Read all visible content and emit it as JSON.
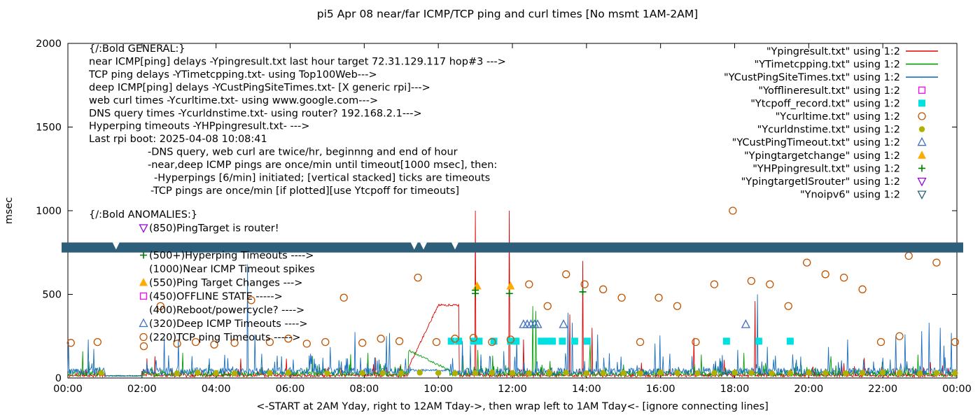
{
  "title": "pi5 Apr 08  near/far ICMP/TCP ping and curl times [No msmt 1AM-2AM]",
  "ylabel": "msec",
  "xlabel": "<-START at 2AM Yday, right to 12AM Tday->, then wrap left to 1AM Tday<- [ignore connecting lines]",
  "axes": {
    "y_ticks": [
      0,
      500,
      1000,
      1500,
      2000
    ],
    "x_ticks": [
      "00:00",
      "02:00",
      "04:00",
      "06:00",
      "08:00",
      "10:00",
      "12:00",
      "14:00",
      "16:00",
      "18:00",
      "20:00",
      "22:00",
      "00:00"
    ],
    "x_range_hours": [
      0,
      24
    ],
    "y_range": [
      0,
      2000
    ],
    "grid": false
  },
  "legend": {
    "position": "top-right-inside",
    "items": [
      {
        "label": "\"Ypingresult.txt\" using 1:2",
        "marker": "line",
        "color": "#dd0000"
      },
      {
        "label": "\"YTimetcpping.txt\" using 1:2",
        "marker": "line",
        "color": "#009e00"
      },
      {
        "label": "\"YCustPingSiteTimes.txt\" using 1:2",
        "marker": "line",
        "color": "#1b6fc0"
      },
      {
        "label": "\"Yofflineresult.txt\" using 1:2",
        "marker": "square-open",
        "color": "#ff00ff"
      },
      {
        "label": "\"Ytcpoff_record.txt\" using 1:2",
        "marker": "square-filled",
        "color": "#00e0e0"
      },
      {
        "label": "\"Ycurltime.txt\" using 1:2",
        "marker": "circle-open",
        "color": "#c25400"
      },
      {
        "label": "\"Ycurldnstime.txt\" using 1:2",
        "marker": "circle-filled",
        "color": "#b0b000"
      },
      {
        "label": "\"YCustPingTimeout.txt\" using 1:2",
        "marker": "triangle-open",
        "color": "#3f6fc4"
      },
      {
        "label": "\"Ypingtargetchange\" using 1:2",
        "marker": "triangle-filled",
        "color": "#ffaa00"
      },
      {
        "label": "\"YHPpingresult.txt\" using 1:2",
        "marker": "plus",
        "color": "#007a00"
      },
      {
        "label": "\"YpingtargetISrouter\" using 1:2",
        "marker": "nabla-open",
        "color": "#9400d3"
      },
      {
        "label": "\"Ynoipv6\" using 1:2",
        "marker": "nabla-open",
        "color": "#2e5f7a"
      }
    ]
  },
  "general_text": {
    "lines": [
      {
        "text": "{/:Bold GENERAL:}",
        "indent": 0
      },
      {
        "text": "near ICMP[ping] delays -Ypingresult.txt last hour target 72.31.129.117 hop#3 --->",
        "indent": 0
      },
      {
        "text": "TCP ping delays -YTimetcpping.txt- using Top100Web--->",
        "indent": 0
      },
      {
        "text": "deep ICMP[ping] delays -YCustPingSiteTimes.txt- [X generic rpi]--->",
        "indent": 0
      },
      {
        "text": "web curl times -Ycurltime.txt- using www.google.com--->",
        "indent": 0
      },
      {
        "text": "DNS query times -Ycurldnstime.txt- using router? 192.168.2.1--->",
        "indent": 0
      },
      {
        "text": "Hyperping timeouts -YHPpingresult.txt- --->",
        "indent": 0
      },
      {
        "text": "Last rpi boot: 2025-04-08 10:08:41",
        "indent": 0
      },
      {
        "text": "-DNS query, web curl are twice/hr, beginnng and end of hour",
        "indent": 84
      },
      {
        "text": "-near,deep ICMP pings are once/min until timeout[1000 msec], then:",
        "indent": 84
      },
      {
        "text": "-Hyperpings [6/min] initiated; [vertical stacked] ticks are timeouts",
        "indent": 93
      },
      {
        "text": "-TCP pings are once/min [if plotted][use Ytcpoff for timeouts]",
        "indent": 88
      }
    ]
  },
  "anomalies": {
    "header": "{/:Bold ANOMALIES:}",
    "items": [
      {
        "marker": "nabla-open",
        "color": "#9400d3",
        "text": "(850)PingTarget is router!",
        "gap_before": 0
      },
      {
        "marker": "plus",
        "color": "#007a00",
        "text": "(500+)Hyperping Timeouts ---->",
        "gap_before": 1
      },
      {
        "marker": "",
        "color": "",
        "text": "(1000)Near ICMP Timeout spikes",
        "gap_before": 0
      },
      {
        "marker": "triangle-filled",
        "color": "#ffaa00",
        "text": "(550)Ping Target Changes --->",
        "gap_before": 0
      },
      {
        "marker": "square-open",
        "color": "#ff00ff",
        "text": "(450)OFFLINE STATE ----->",
        "gap_before": 0
      },
      {
        "marker": "",
        "color": "",
        "text": "(400)Reboot/powercycle? ---->",
        "gap_before": 0
      },
      {
        "marker": "triangle-open",
        "color": "#3f6fc4",
        "text": "(320)Deep ICMP Timeouts ---->",
        "gap_before": 0
      },
      {
        "marker": "circle-open",
        "color": "#c25400",
        "text": "(220)TCP ping Timeouts ----->",
        "gap_before": 0
      }
    ]
  },
  "chart_data": {
    "type": "line",
    "x_unit": "hours_0_to_24",
    "y_unit": "msec",
    "xlim": [
      0,
      24
    ],
    "ylim": [
      0,
      2000
    ],
    "no_measurement_window_hours": [
      1,
      2
    ],
    "series": [
      {
        "name": "Ypingresult.txt",
        "type": "noise-line",
        "color": "#dd0000",
        "base": 18,
        "amp": 45,
        "seed": 11,
        "segments": [
          {
            "x0": 9.2,
            "y0": 60,
            "x1": 10.0,
            "y1": 430
          },
          {
            "x0": 10.0,
            "y0": 430,
            "x1": 10.55,
            "y1": 430
          }
        ],
        "spikes": [
          [
            11.0,
            1000
          ],
          [
            11.92,
            1000
          ],
          [
            13.9,
            700
          ],
          [
            13.55,
            380
          ],
          [
            14.15,
            300
          ],
          [
            12.3,
            230
          ],
          [
            16.9,
            240
          ],
          [
            18.55,
            460
          ],
          [
            2.35,
            130
          ],
          [
            5.9,
            115
          ],
          [
            21.5,
            120
          ]
        ]
      },
      {
        "name": "YTimetcpping.txt",
        "type": "noise-line",
        "color": "#009e00",
        "base": 28,
        "amp": 55,
        "seed": 22,
        "segments": [
          {
            "x0": 9.2,
            "y0": 160,
            "x1": 10.3,
            "y1": 40
          }
        ],
        "spikes": [
          [
            12.55,
            430
          ],
          [
            12.63,
            400
          ],
          [
            0.4,
            160
          ],
          [
            3.1,
            150
          ],
          [
            6.6,
            130
          ],
          [
            8.1,
            150
          ],
          [
            14.1,
            210
          ],
          [
            17.1,
            140
          ],
          [
            20.6,
            130
          ]
        ]
      },
      {
        "name": "YCustPingSiteTimes.txt",
        "type": "noise-line",
        "color": "#1b6fc0",
        "base": 45,
        "amp": 95,
        "seed": 33,
        "segments": [
          {
            "x0": 9.25,
            "y0": 40,
            "x1": 10.3,
            "y1": 40
          }
        ],
        "spikes": [
          [
            0.55,
            230
          ],
          [
            2.6,
            240
          ],
          [
            4.85,
            680
          ],
          [
            5.05,
            260
          ],
          [
            8.6,
            250
          ],
          [
            13.5,
            390
          ],
          [
            13.62,
            330
          ],
          [
            14.3,
            260
          ],
          [
            18.62,
            500
          ],
          [
            21.05,
            230
          ],
          [
            22.35,
            250
          ],
          [
            22.6,
            260
          ],
          [
            23.05,
            280
          ],
          [
            23.25,
            330
          ],
          [
            23.55,
            300
          ],
          [
            23.85,
            270
          ]
        ]
      },
      {
        "name": "Yofflineresult.txt",
        "type": "scatter",
        "marker": "square-open",
        "color": "#ff00ff",
        "points": []
      },
      {
        "name": "Ytcpoff_record.txt",
        "type": "scatter",
        "marker": "square-filled",
        "color": "#00e0e0",
        "points": [
          [
            10.35,
            220
          ],
          [
            10.55,
            220
          ],
          [
            10.95,
            220
          ],
          [
            11.1,
            220
          ],
          [
            11.5,
            220
          ],
          [
            11.95,
            220
          ],
          [
            12.1,
            220
          ],
          [
            12.78,
            220
          ],
          [
            12.92,
            220
          ],
          [
            13.08,
            220
          ],
          [
            13.35,
            220
          ],
          [
            13.68,
            220
          ],
          [
            14.02,
            220
          ],
          [
            17.78,
            220
          ],
          [
            18.65,
            220
          ],
          [
            19.5,
            220
          ]
        ]
      },
      {
        "name": "Ycurltime.txt",
        "type": "scatter",
        "marker": "circle-open",
        "color": "#c25400",
        "points": [
          [
            0.08,
            210
          ],
          [
            0.8,
            215
          ],
          [
            2.05,
            190
          ],
          [
            2.5,
            430
          ],
          [
            2.95,
            205
          ],
          [
            3.45,
            215
          ],
          [
            3.95,
            200
          ],
          [
            4.5,
            210
          ],
          [
            4.95,
            465
          ],
          [
            5.45,
            215
          ],
          [
            5.95,
            235
          ],
          [
            6.45,
            205
          ],
          [
            6.95,
            215
          ],
          [
            7.45,
            480
          ],
          [
            7.95,
            210
          ],
          [
            8.45,
            235
          ],
          [
            8.95,
            220
          ],
          [
            9.45,
            600
          ],
          [
            9.95,
            215
          ],
          [
            10.45,
            235
          ],
          [
            10.95,
            240
          ],
          [
            11.45,
            215
          ],
          [
            11.95,
            230
          ],
          [
            12.45,
            560
          ],
          [
            12.95,
            430
          ],
          [
            13.45,
            620
          ],
          [
            13.95,
            560
          ],
          [
            14.45,
            530
          ],
          [
            14.95,
            480
          ],
          [
            15.45,
            215
          ],
          [
            15.95,
            480
          ],
          [
            16.45,
            430
          ],
          [
            16.95,
            215
          ],
          [
            17.45,
            560
          ],
          [
            17.95,
            1000
          ],
          [
            18.45,
            580
          ],
          [
            18.95,
            560
          ],
          [
            19.45,
            430
          ],
          [
            19.95,
            690
          ],
          [
            20.45,
            620
          ],
          [
            20.95,
            600
          ],
          [
            21.45,
            530
          ],
          [
            21.95,
            215
          ],
          [
            22.45,
            250
          ],
          [
            22.7,
            730
          ],
          [
            23.45,
            690
          ],
          [
            23.95,
            215
          ]
        ]
      },
      {
        "name": "Ycurldnstime.txt",
        "type": "scatter",
        "marker": "circle-filled",
        "color": "#b0b000",
        "points": [
          [
            0.9,
            30
          ],
          [
            2.95,
            28
          ],
          [
            3.5,
            32
          ],
          [
            4.0,
            30
          ],
          [
            4.5,
            28
          ],
          [
            5.45,
            30
          ],
          [
            5.95,
            32
          ],
          [
            7.0,
            28
          ],
          [
            7.95,
            30
          ],
          [
            8.5,
            30
          ],
          [
            9.0,
            28
          ],
          [
            9.5,
            32
          ],
          [
            10.0,
            30
          ],
          [
            10.45,
            28
          ],
          [
            11.0,
            30
          ],
          [
            11.45,
            32
          ],
          [
            12.0,
            30
          ],
          [
            12.45,
            28
          ],
          [
            13.0,
            30
          ],
          [
            13.45,
            32
          ],
          [
            14.0,
            28
          ],
          [
            14.45,
            30
          ],
          [
            15.0,
            30
          ],
          [
            15.45,
            28
          ],
          [
            16.0,
            32
          ],
          [
            16.45,
            30
          ],
          [
            17.0,
            28
          ],
          [
            17.45,
            30
          ],
          [
            18.0,
            32
          ],
          [
            18.45,
            30
          ],
          [
            19.0,
            28
          ],
          [
            19.5,
            30
          ],
          [
            20.0,
            32
          ],
          [
            20.45,
            30
          ],
          [
            21.0,
            28
          ],
          [
            21.45,
            30
          ],
          [
            22.0,
            32
          ],
          [
            22.45,
            30
          ],
          [
            23.0,
            28
          ],
          [
            23.45,
            30
          ],
          [
            23.95,
            30
          ]
        ]
      },
      {
        "name": "YCustPingTimeout.txt",
        "type": "scatter",
        "marker": "triangle-open",
        "color": "#3f6fc4",
        "points": [
          [
            12.3,
            320
          ],
          [
            12.4,
            320
          ],
          [
            12.5,
            320
          ],
          [
            12.6,
            320
          ],
          [
            12.68,
            320
          ],
          [
            13.38,
            320
          ],
          [
            18.3,
            320
          ]
        ]
      },
      {
        "name": "Ypingtargetchange",
        "type": "scatter",
        "marker": "triangle-filled",
        "color": "#ffaa00",
        "points": [
          [
            11.05,
            550
          ],
          [
            11.95,
            550
          ]
        ]
      },
      {
        "name": "YHPpingresult.txt",
        "type": "scatter",
        "marker": "plus",
        "color": "#007a00",
        "points": [
          [
            11.0,
            505
          ],
          [
            11.0,
            525
          ],
          [
            11.92,
            505
          ],
          [
            13.9,
            515
          ]
        ]
      },
      {
        "name": "YpingtargetISrouter",
        "type": "scatter",
        "marker": "nabla-open",
        "color": "#9400d3",
        "points": []
      },
      {
        "name": "Ynoipv6",
        "type": "band",
        "marker": "nabla-open",
        "color": "#2e5f7a",
        "y": 780,
        "half_height_msec": 30,
        "x0": 0,
        "x1": 24,
        "notches": [
          1.3,
          9.35,
          9.6,
          10.45
        ]
      }
    ]
  }
}
